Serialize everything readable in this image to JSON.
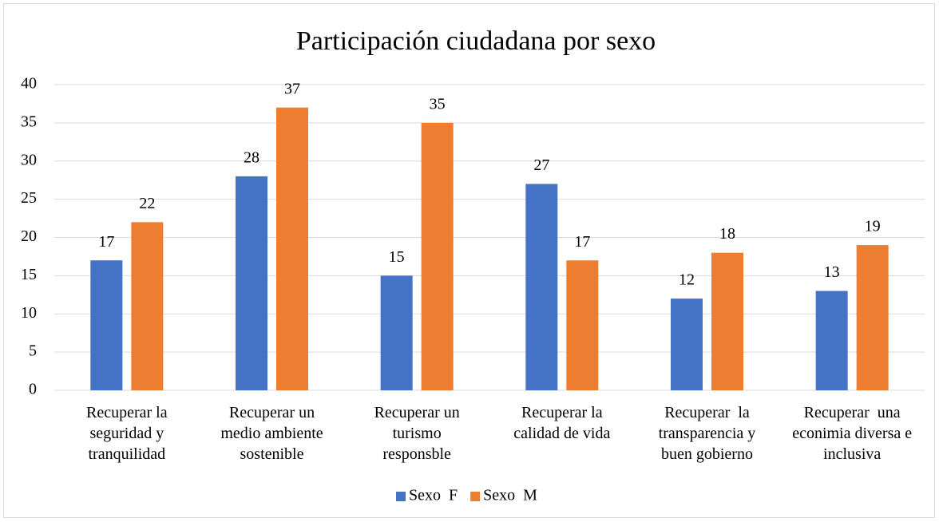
{
  "chart_data": {
    "type": "bar",
    "title": "Participación ciudadana por sexo",
    "categories": [
      "Recuperar la\nseguridad y\ntranquilidad",
      "Recuperar un\nmedio ambiente\nsostenible",
      "Recuperar un\nturismo\nresponsble",
      "Recuperar la\ncalidad de vida",
      "Recuperar  la\ntransparencia y\nbuen gobierno",
      "Recuperar  una\neconimia diversa e\ninclusiva"
    ],
    "series": [
      {
        "name": "Sexo  F",
        "color": "#4472c4",
        "values": [
          17,
          28,
          15,
          27,
          12,
          13
        ]
      },
      {
        "name": "Sexo  M",
        "color": "#ed7d31",
        "values": [
          22,
          37,
          35,
          17,
          18,
          19
        ]
      }
    ],
    "ylim": [
      0,
      40
    ],
    "yticks": [
      0,
      5,
      10,
      15,
      20,
      25,
      30,
      35,
      40
    ],
    "grid": true,
    "legend": "bottom"
  }
}
